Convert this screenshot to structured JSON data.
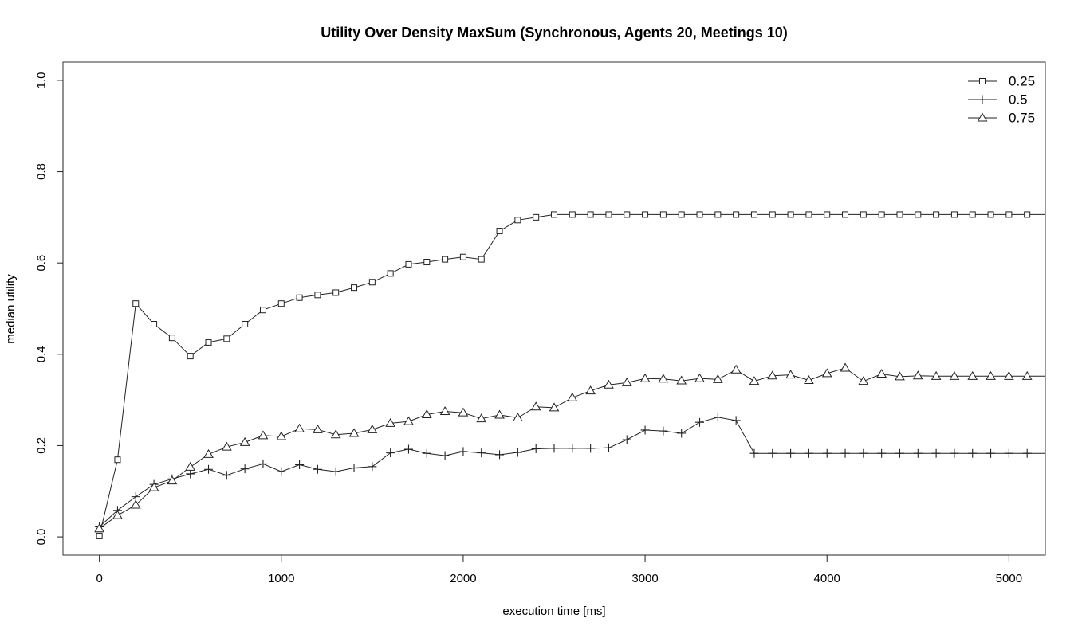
{
  "chart_data": {
    "type": "line",
    "title": "Utility Over Density MaxSum (Synchronous, Agents 20, Meetings 10)",
    "xlabel": "execution time [ms]",
    "ylabel": "median utility",
    "xlim": [
      -200,
      5200
    ],
    "ylim": [
      -0.04,
      1.04
    ],
    "x_ticks": [
      0,
      1000,
      2000,
      3000,
      4000,
      5000
    ],
    "x_tick_labels": [
      "0",
      "1000",
      "2000",
      "3000",
      "4000",
      "5000"
    ],
    "y_ticks": [
      0.0,
      0.2,
      0.4,
      0.6,
      0.8,
      1.0
    ],
    "y_tick_labels": [
      "0.0",
      "0.2",
      "0.4",
      "0.6",
      "0.8",
      "1.0"
    ],
    "grid": false,
    "legend_position": "top-right",
    "line_color": "#222222",
    "x": [
      0,
      100,
      200,
      300,
      400,
      500,
      600,
      700,
      800,
      900,
      1000,
      1100,
      1200,
      1300,
      1400,
      1500,
      1600,
      1700,
      1800,
      1900,
      2000,
      2100,
      2200,
      2300,
      2400,
      2500,
      2600,
      2700,
      2800,
      2900,
      3000,
      3100,
      3200,
      3300,
      3400,
      3500,
      3600,
      3700,
      3800,
      3900,
      4000,
      4100,
      4200,
      4300,
      4400,
      4500,
      4600,
      4700,
      4800,
      4900,
      5000,
      5100,
      5200
    ],
    "series": [
      {
        "name": "0.25",
        "marker": "square",
        "values": [
          0.002,
          0.169,
          0.511,
          0.466,
          0.436,
          0.396,
          0.426,
          0.434,
          0.466,
          0.497,
          0.511,
          0.524,
          0.53,
          0.535,
          0.546,
          0.558,
          0.577,
          0.597,
          0.602,
          0.608,
          0.613,
          0.608,
          0.67,
          0.694,
          0.7,
          0.706,
          0.706,
          0.706,
          0.706,
          0.706,
          0.706,
          0.706,
          0.706,
          0.706,
          0.706,
          0.706,
          0.706,
          0.706,
          0.706,
          0.706,
          0.706,
          0.706,
          0.706,
          0.706,
          0.706,
          0.706,
          0.706,
          0.706,
          0.706,
          0.706,
          0.706,
          0.706,
          0.706
        ]
      },
      {
        "name": "0.5",
        "marker": "plus",
        "values": [
          0.022,
          0.058,
          0.088,
          0.115,
          0.127,
          0.138,
          0.148,
          0.135,
          0.149,
          0.16,
          0.143,
          0.158,
          0.148,
          0.143,
          0.151,
          0.154,
          0.184,
          0.192,
          0.183,
          0.178,
          0.187,
          0.184,
          0.18,
          0.185,
          0.193,
          0.194,
          0.194,
          0.194,
          0.195,
          0.213,
          0.234,
          0.232,
          0.227,
          0.251,
          0.262,
          0.255,
          0.183,
          0.183,
          0.183,
          0.183,
          0.183,
          0.183,
          0.183,
          0.183,
          0.183,
          0.183,
          0.183,
          0.183,
          0.183,
          0.183,
          0.183,
          0.183,
          0.183
        ]
      },
      {
        "name": "0.75",
        "marker": "triangle",
        "values": [
          0.018,
          0.047,
          0.07,
          0.108,
          0.123,
          0.153,
          0.181,
          0.197,
          0.207,
          0.222,
          0.22,
          0.237,
          0.235,
          0.224,
          0.227,
          0.235,
          0.249,
          0.253,
          0.268,
          0.275,
          0.272,
          0.259,
          0.267,
          0.261,
          0.285,
          0.283,
          0.305,
          0.32,
          0.333,
          0.338,
          0.347,
          0.346,
          0.342,
          0.347,
          0.345,
          0.366,
          0.341,
          0.353,
          0.355,
          0.343,
          0.358,
          0.37,
          0.341,
          0.357,
          0.351,
          0.353,
          0.352,
          0.352,
          0.352,
          0.352,
          0.352,
          0.352,
          0.352
        ]
      }
    ]
  }
}
